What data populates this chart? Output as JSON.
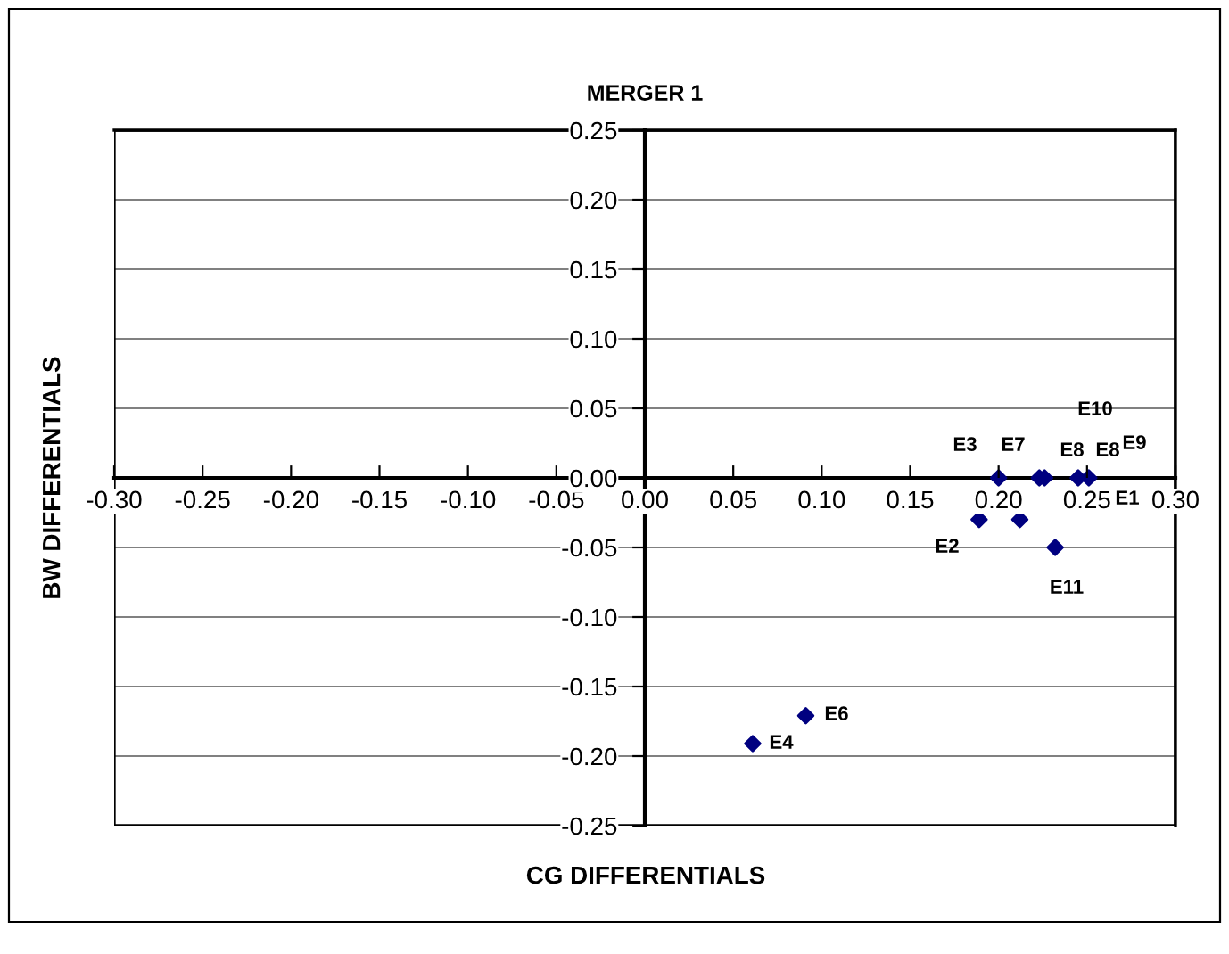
{
  "chart_data": {
    "type": "scatter",
    "title": "MERGER 1",
    "xlabel": "CG DIFFERENTIALS",
    "ylabel": "BW DIFFERENTIALS",
    "series": [
      {
        "color": "#000080",
        "x": [
          0.2,
          0.223,
          0.226,
          0.245,
          0.251,
          0.189,
          0.212,
          0.232,
          0.091,
          0.061
        ],
        "values": [
          0.0,
          0.0,
          0.0,
          0.0,
          0.0,
          -0.03,
          -0.03,
          -0.05,
          -0.171,
          -0.191
        ]
      }
    ],
    "annotations": [
      "E3",
      "E7",
      "E8",
      "E8",
      "E9",
      "E10",
      "E1",
      "E2",
      "E11",
      "E6",
      "E4"
    ],
    "xlim": [
      -0.3,
      0.3
    ],
    "xticks": [
      {
        "value": -0.3,
        "label": "-0.30"
      },
      {
        "value": -0.25,
        "label": "-0.25"
      },
      {
        "value": -0.2,
        "label": "-0.20"
      },
      {
        "value": -0.15,
        "label": "-0.15"
      },
      {
        "value": -0.1,
        "label": "-0.10"
      },
      {
        "value": -0.05,
        "label": "-0.05"
      },
      {
        "value": 0,
        "label": "0.00"
      },
      {
        "value": 0.05,
        "label": "0.05"
      },
      {
        "value": 0.1,
        "label": "0.10"
      },
      {
        "value": 0.15,
        "label": "0.15"
      },
      {
        "value": 0.2,
        "label": "0.20"
      },
      {
        "value": 0.25,
        "label": "0.25"
      },
      {
        "value": 0.3,
        "label": "0.30"
      }
    ],
    "ylim": [
      -0.25,
      0.25
    ],
    "yticks": [
      {
        "value": -0.25,
        "label": "-0.25"
      },
      {
        "value": -0.2,
        "label": "-0.20"
      },
      {
        "value": -0.15,
        "label": "-0.15"
      },
      {
        "value": -0.1,
        "label": "-0.10"
      },
      {
        "value": -0.05,
        "label": "-0.05"
      },
      {
        "value": 0,
        "label": "0.00"
      },
      {
        "value": 0.05,
        "label": "0.05"
      },
      {
        "value": 0.1,
        "label": "0.10"
      },
      {
        "value": 0.15,
        "label": "0.15"
      },
      {
        "value": 0.2,
        "label": "0.20"
      },
      {
        "value": 0.25,
        "label": "0.25"
      }
    ],
    "grid": "y",
    "marker": "diamond",
    "legend": false
  }
}
